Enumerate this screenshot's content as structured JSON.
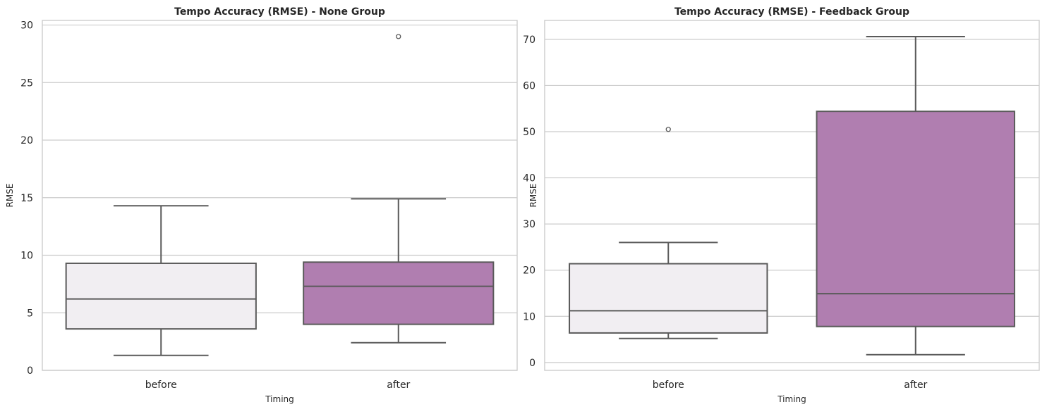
{
  "chart_data": [
    {
      "type": "box",
      "title": "Tempo Accuracy (RMSE) - None Group",
      "xlabel": "Timing",
      "ylabel": "RMSE",
      "categories": [
        "before",
        "after"
      ],
      "ylim": [
        0,
        30.4
      ],
      "yticks": [
        0,
        5,
        10,
        15,
        20,
        25,
        30
      ],
      "grid": true,
      "boxes": [
        {
          "category": "before",
          "whisker_low": 1.3,
          "q1": 3.6,
          "median": 6.2,
          "q3": 9.3,
          "whisker_high": 14.3,
          "outliers": []
        },
        {
          "category": "after",
          "whisker_low": 2.4,
          "q1": 4.0,
          "median": 7.3,
          "q3": 9.4,
          "whisker_high": 14.9,
          "outliers": [
            29.0
          ]
        }
      ]
    },
    {
      "type": "box",
      "title": "Tempo Accuracy (RMSE) - Feedback Group",
      "xlabel": "Timing",
      "ylabel": "RMSE",
      "categories": [
        "before",
        "after"
      ],
      "ylim": [
        -1.7,
        74.1
      ],
      "yticks": [
        0,
        10,
        20,
        30,
        40,
        50,
        60,
        70
      ],
      "grid": true,
      "boxes": [
        {
          "category": "before",
          "whisker_low": 5.2,
          "q1": 6.4,
          "median": 11.2,
          "q3": 21.4,
          "whisker_high": 26.0,
          "outliers": [
            50.5
          ]
        },
        {
          "category": "after",
          "whisker_low": 1.7,
          "q1": 7.8,
          "median": 14.9,
          "q3": 54.4,
          "whisker_high": 70.6,
          "outliers": []
        }
      ]
    }
  ],
  "colors": {
    "box_before": "#f1eef2",
    "box_after": "#b07eb0",
    "box_edge": "#5a5a5a",
    "grid": "#cccccc",
    "spine": "#cccccc"
  }
}
